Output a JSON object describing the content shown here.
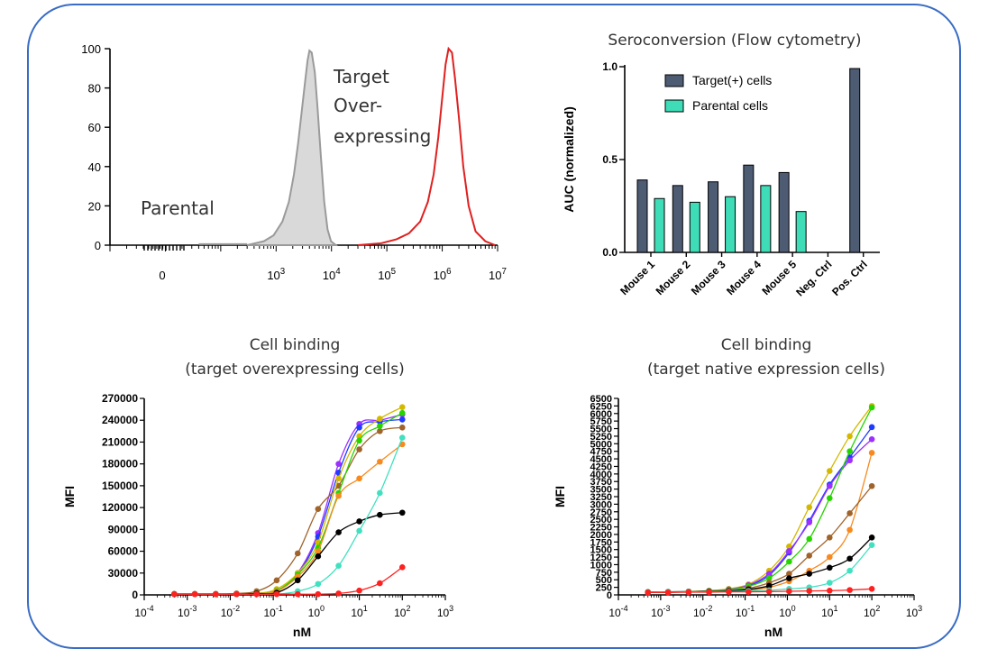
{
  "chart_data": [
    {
      "type": "area",
      "xscale": "log",
      "xlim": [
        1,
        10000000
      ],
      "ylim": [
        0,
        100
      ],
      "yticks": [
        "0",
        "20",
        "40",
        "60",
        "80",
        "100"
      ],
      "xticks": [
        "0",
        "10",
        "3",
        "10",
        "4",
        "10",
        "5",
        "10",
        "6",
        "10",
        "7"
      ],
      "series": [
        {
          "name": "Parental",
          "color": "#c8c8c8",
          "x": [
            300,
            600,
            900,
            1300,
            1700,
            2100,
            2500,
            2900,
            3300,
            3700,
            4000,
            4400,
            5000,
            5600,
            6400,
            7400,
            8500,
            9800,
            12000
          ],
          "y": [
            0,
            2,
            5,
            12,
            22,
            36,
            52,
            68,
            82,
            94,
            99,
            98,
            88,
            70,
            46,
            22,
            8,
            2,
            0
          ]
        },
        {
          "name": "Target Over-expressing",
          "color": "#e02020",
          "x": [
            30000,
            80000,
            150000,
            250000,
            400000,
            550000,
            700000,
            850000,
            1000000,
            1150000,
            1300000,
            1500000,
            1700000,
            2000000,
            2400000,
            3000000,
            4000000,
            6000000,
            9000000
          ],
          "y": [
            0,
            1,
            3,
            6,
            12,
            22,
            36,
            55,
            75,
            92,
            100,
            98,
            85,
            65,
            40,
            20,
            7,
            2,
            0
          ]
        }
      ],
      "labels": [
        "Parental",
        "Target",
        "Over-",
        "expressing"
      ]
    },
    {
      "type": "bar",
      "title": "Seroconversion (Flow cytometry)",
      "ylabel": "AUC (normalized)",
      "ylim": [
        0,
        1.0
      ],
      "yticks": [
        "0.0",
        "0.5",
        "1.0"
      ],
      "categories": [
        "Mouse 1",
        "Mouse 2",
        "Mouse 3",
        "Mouse 4",
        "Mouse 5",
        "Neg. Ctrl",
        "Pos. Ctrl"
      ],
      "legend": "top-left",
      "series": [
        {
          "name": "Target(+) cells",
          "color": "#4d5b73",
          "values": [
            0.39,
            0.36,
            0.38,
            0.47,
            0.43,
            0,
            0.99
          ]
        },
        {
          "name": "Parental cells",
          "color": "#3fdcb8",
          "values": [
            0.29,
            0.27,
            0.3,
            0.36,
            0.22,
            0,
            0
          ]
        }
      ]
    },
    {
      "type": "scatter",
      "title": [
        "Cell binding",
        "(target overexpressing cells)"
      ],
      "xlabel": "nM",
      "ylabel": "MFI",
      "xscale": "log",
      "xlim": [
        0.0001,
        1000
      ],
      "ylim": [
        0,
        270000
      ],
      "yticks": [
        "0",
        "30000",
        "60000",
        "90000",
        "120000",
        "150000",
        "180000",
        "210000",
        "240000",
        "270000"
      ],
      "xticks": [
        "10",
        "-4",
        "10",
        "-3",
        "10",
        "-2",
        "10",
        "-1",
        "10",
        "0",
        "10",
        "1",
        "10",
        "2",
        "10",
        "3"
      ],
      "x": [
        0.0005,
        0.0015,
        0.0046,
        0.014,
        0.041,
        0.12,
        0.37,
        1.1,
        3.3,
        10,
        30,
        100
      ],
      "series": [
        {
          "color": "#9b30ff",
          "values": [
            1000,
            1000,
            1000,
            1000,
            2000,
            5000,
            30000,
            85000,
            180000,
            235000,
            240000,
            248000
          ]
        },
        {
          "color": "#1f3bff",
          "values": [
            1000,
            1000,
            1000,
            1000,
            2000,
            5000,
            28000,
            80000,
            168000,
            230000,
            238000,
            241000
          ]
        },
        {
          "color": "#a0632a",
          "values": [
            1500,
            1500,
            1500,
            2000,
            5000,
            20000,
            57000,
            118000,
            150000,
            200000,
            225000,
            230000
          ]
        },
        {
          "color": "#d4b800",
          "values": [
            1000,
            1000,
            1000,
            1000,
            2000,
            8000,
            30000,
            72000,
            160000,
            218000,
            242000,
            258000
          ]
        },
        {
          "color": "#26d400",
          "values": [
            1000,
            1000,
            1000,
            1000,
            2000,
            6000,
            28000,
            65000,
            140000,
            212000,
            232000,
            250000
          ]
        },
        {
          "color": "#f7891e",
          "values": [
            1000,
            1000,
            1000,
            1000,
            2000,
            5000,
            25000,
            60000,
            136000,
            160000,
            183000,
            207000
          ]
        },
        {
          "color": "#000000",
          "values": [
            1000,
            1000,
            1000,
            1000,
            2000,
            3000,
            20000,
            53000,
            86000,
            101000,
            110000,
            113000
          ]
        },
        {
          "color": "#40e0c0",
          "values": [
            1000,
            1000,
            1000,
            1000,
            1000,
            1000,
            5000,
            15000,
            40000,
            88000,
            140000,
            216000
          ]
        },
        {
          "color": "#ff2020",
          "values": [
            1000,
            1000,
            1000,
            1000,
            1000,
            1000,
            1000,
            1000,
            2000,
            6000,
            16000,
            38000
          ]
        }
      ]
    },
    {
      "type": "scatter",
      "title": [
        "Cell binding",
        "(target native expression cells)"
      ],
      "xlabel": "nM",
      "ylabel": "MFI",
      "xscale": "log",
      "xlim": [
        0.0001,
        1000
      ],
      "ylim": [
        0,
        6500
      ],
      "yticks": [
        "0",
        "250",
        "500",
        "750",
        "1000",
        "1250",
        "1500",
        "1750",
        "2000",
        "2250",
        "2500",
        "2750",
        "3000",
        "3250",
        "3500",
        "3750",
        "4000",
        "4250",
        "4500",
        "4750",
        "5000",
        "5250",
        "5500",
        "5750",
        "6000",
        "6250",
        "6500"
      ],
      "xticks": [
        "10",
        "-4",
        "10",
        "-3",
        "10",
        "-2",
        "10",
        "-1",
        "10",
        "0",
        "10",
        "1",
        "10",
        "2",
        "10",
        "3"
      ],
      "x": [
        0.0005,
        0.0015,
        0.0046,
        0.014,
        0.041,
        0.12,
        0.37,
        1.1,
        3.3,
        10,
        30,
        100
      ],
      "series": [
        {
          "color": "#d4b800",
          "values": [
            100,
            100,
            110,
            140,
            200,
            350,
            800,
            1600,
            2900,
            4100,
            5250,
            6250
          ]
        },
        {
          "color": "#1f3bff",
          "values": [
            90,
            100,
            110,
            130,
            170,
            300,
            650,
            1400,
            2450,
            3650,
            4550,
            5550
          ]
        },
        {
          "color": "#9b30ff",
          "values": [
            90,
            100,
            110,
            130,
            180,
            320,
            700,
            1450,
            2400,
            3600,
            4450,
            5150
          ]
        },
        {
          "color": "#26d400",
          "values": [
            90,
            100,
            110,
            130,
            170,
            280,
            550,
            1100,
            1850,
            3200,
            4750,
            6200
          ]
        },
        {
          "color": "#f7891e",
          "values": [
            80,
            90,
            100,
            110,
            120,
            150,
            250,
            450,
            800,
            1250,
            2150,
            4700
          ]
        },
        {
          "color": "#a0632a",
          "values": [
            80,
            90,
            100,
            120,
            150,
            220,
            400,
            700,
            1300,
            1900,
            2700,
            3600
          ]
        },
        {
          "color": "#000000",
          "values": [
            80,
            90,
            100,
            110,
            130,
            180,
            300,
            550,
            700,
            900,
            1200,
            1900
          ]
        },
        {
          "color": "#40e0c0",
          "values": [
            80,
            90,
            100,
            100,
            110,
            130,
            150,
            200,
            250,
            400,
            800,
            1650
          ]
        },
        {
          "color": "#ff2020",
          "values": [
            80,
            80,
            90,
            90,
            100,
            100,
            110,
            120,
            130,
            140,
            160,
            200
          ]
        }
      ]
    }
  ]
}
